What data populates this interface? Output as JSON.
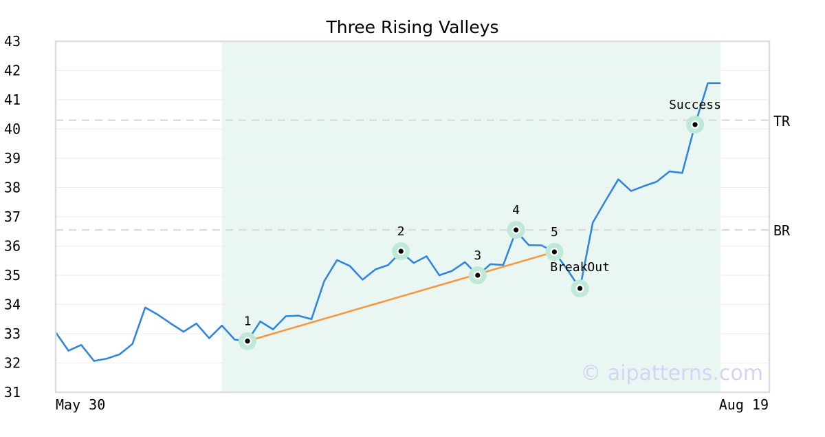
{
  "chart_data": {
    "type": "line",
    "title": "Three Rising Valleys",
    "xlabel": "",
    "ylabel": "",
    "x_tick_labels": [
      "May 30",
      "Aug 19"
    ],
    "ylim": [
      31,
      43
    ],
    "y_ticks": [
      31,
      32,
      33,
      34,
      35,
      36,
      37,
      38,
      39,
      40,
      41,
      42,
      43
    ],
    "grid": true,
    "watermark": "© aipatterns.com",
    "series": [
      {
        "color": "#2f86e0",
        "values": [
          33.05,
          32.42,
          32.62,
          32.07,
          32.15,
          32.3,
          32.65,
          33.9,
          33.65,
          33.35,
          33.07,
          33.35,
          32.85,
          33.28,
          32.8,
          32.75,
          33.42,
          33.15,
          33.6,
          33.62,
          33.5,
          34.8,
          35.52,
          35.32,
          34.85,
          35.2,
          35.35,
          35.8,
          35.42,
          35.65,
          35.0,
          35.15,
          35.45,
          35.0,
          35.38,
          35.35,
          36.52,
          36.03,
          36.02,
          35.8,
          35.2,
          34.55,
          36.8,
          37.55,
          38.28,
          37.88,
          38.05,
          38.2,
          38.55,
          38.5,
          40.15,
          41.57,
          41.57
        ]
      }
    ],
    "shaded_range": {
      "start_index": 13,
      "end_index": 52,
      "color": "#eaf6f1"
    },
    "trendline": {
      "color": "#f59a42",
      "from": [
        15,
        32.75
      ],
      "to": [
        39,
        35.8
      ]
    },
    "hlines": [
      {
        "label": "TR",
        "value": 40.3,
        "color": "#dddddd"
      },
      {
        "label": "BR",
        "value": 36.55,
        "color": "#dddddd"
      }
    ],
    "points": [
      {
        "label": "1",
        "index": 15,
        "value": 32.75,
        "label_pos": "above"
      },
      {
        "label": "2",
        "index": 27,
        "value": 35.82,
        "label_pos": "above"
      },
      {
        "label": "3",
        "index": 33,
        "value": 35.0,
        "label_pos": "above"
      },
      {
        "label": "4",
        "index": 36,
        "value": 36.55,
        "label_pos": "above"
      },
      {
        "label": "5",
        "index": 39,
        "value": 35.8,
        "label_pos": "above"
      },
      {
        "label": "BreakOut",
        "index": 41,
        "value": 34.55,
        "label_pos": "above-left"
      },
      {
        "label": "Success",
        "index": 50,
        "value": 40.15,
        "label_pos": "above"
      }
    ],
    "colors": {
      "line": "#2f86e0",
      "marker_halo": "#bfe9d6",
      "marker_dot": "#000000",
      "frame": "#dddddd",
      "grid": "#eeeeee",
      "watermark": "#d3d4f6"
    }
  }
}
